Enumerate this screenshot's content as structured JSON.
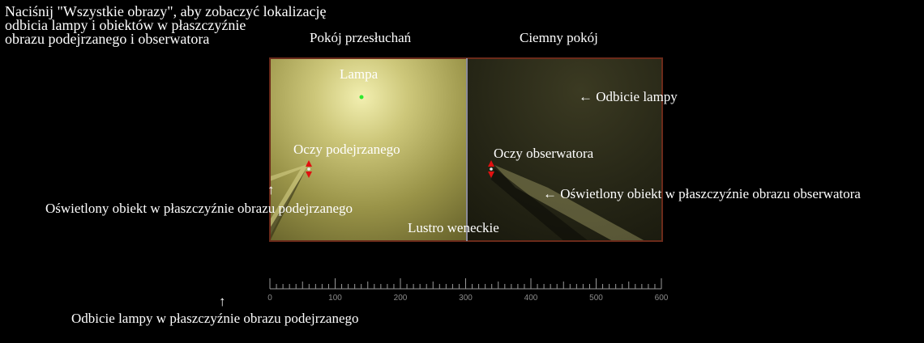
{
  "instruction": "Naciśnij \"Wszystkie obrazy\", aby zobaczyć lokalizację\nodbicia lampy i obiektów w płaszczyźnie\nobrazu podejrzanego i obserwatora",
  "rooms": {
    "interrogation": "Pokój przesłuchań",
    "dark": "Ciemny pokój"
  },
  "labels": {
    "lamp": "Lampa",
    "lamp_reflection": "← Odbicie lampy",
    "suspect_eyes": "Oczy podejrzanego",
    "observer_eyes": "Oczy obserwatora",
    "lit_object_suspect_plane": "Oświetlony obiekt w płaszczyźnie obrazu podejrzanego",
    "lit_object_observer_plane": "← Oświetlony obiekt w płaszczyźnie obrazu obserwatora",
    "mirror": "Lustro weneckie",
    "lamp_reflection_suspect_plane": "Odbicie lampy w płaszczyźnie obrazu podejrzanego",
    "up_arrow": "↑"
  },
  "ruler": {
    "ticks": [
      "0",
      "100",
      "200",
      "300",
      "400",
      "500",
      "600"
    ]
  },
  "colors": {
    "background": "#000000",
    "room_border": "#6b2a1a",
    "lit_room": "#b8b35a",
    "dark_room": "#2a2a1a",
    "lamp_dot": "#2ee82e",
    "eye_marker": "#e01010",
    "ruler": "#9a9a9a"
  }
}
